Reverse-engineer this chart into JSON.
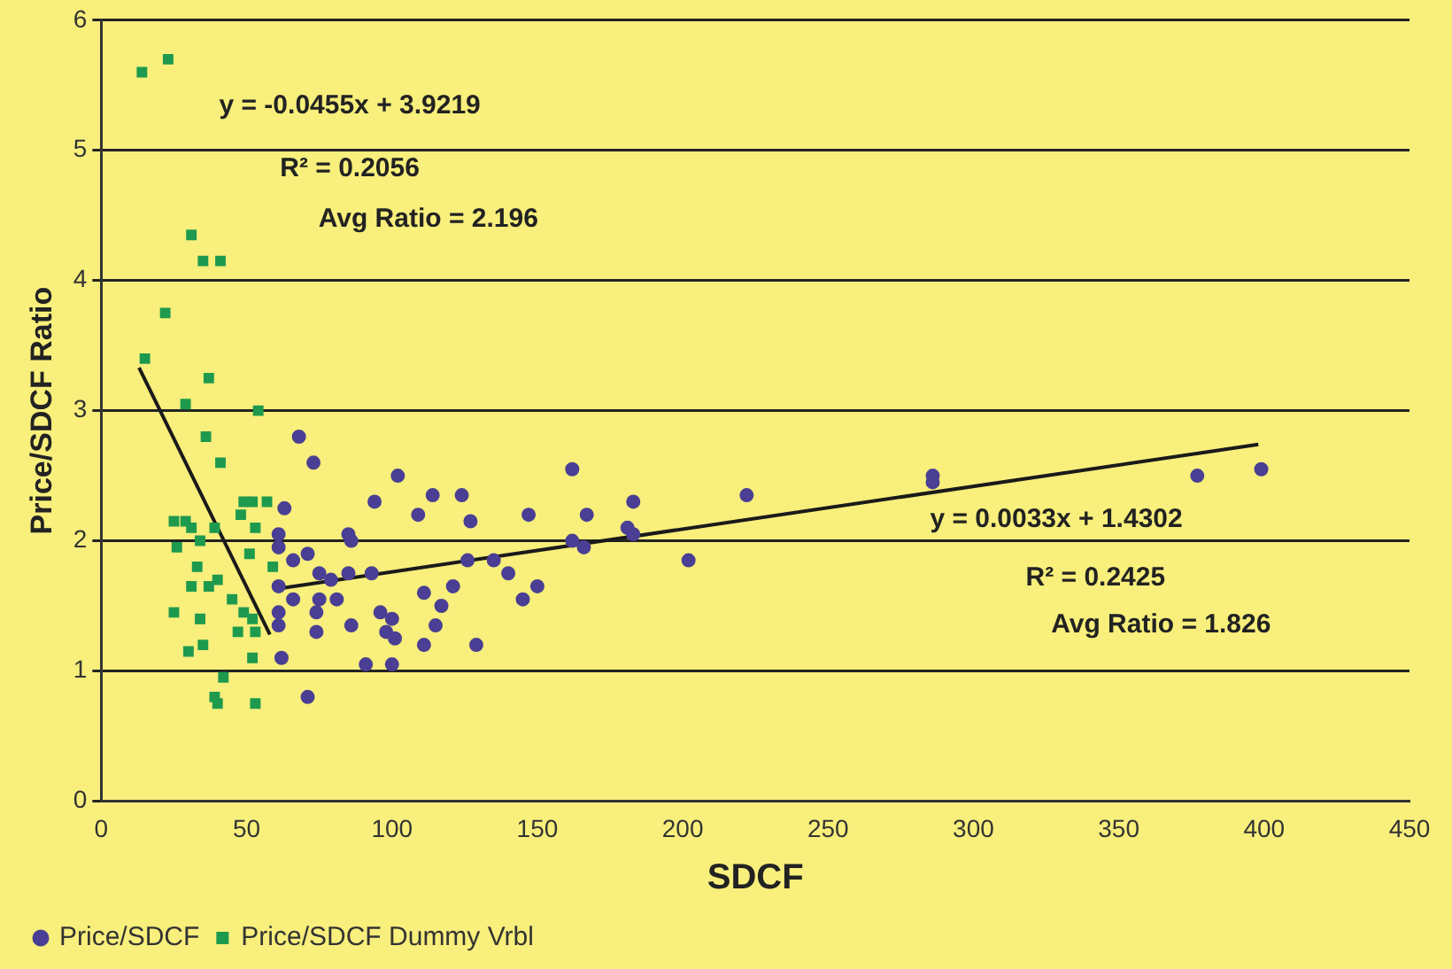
{
  "chart_data": {
    "type": "scatter",
    "xlabel": "SDCF",
    "ylabel": "Price/SDCF Ratio",
    "xlim": [
      0,
      450
    ],
    "xticks": [
      0,
      50,
      100,
      150,
      200,
      250,
      300,
      350,
      400,
      450
    ],
    "ylim": [
      0,
      6
    ],
    "yticks": [
      0,
      1,
      2,
      3,
      4,
      5,
      6
    ],
    "grid": "y",
    "legend": "bottom left",
    "series": [
      {
        "name": "Price/SDCF",
        "color": "#4a3f94",
        "marker": "circle",
        "x": [
          68,
          73,
          102,
          94,
          114,
          124,
          109,
          127,
          147,
          162,
          183,
          167,
          181,
          183,
          162,
          166,
          202,
          63,
          61,
          85,
          86,
          61,
          66,
          71,
          126,
          135,
          140,
          75,
          79,
          85,
          93,
          61,
          121,
          150,
          66,
          75,
          81,
          111,
          145,
          61,
          74,
          96,
          100,
          117,
          61,
          74,
          86,
          98,
          101,
          115,
          111,
          129,
          62,
          91,
          100,
          71,
          222,
          286,
          286,
          377,
          399
        ],
        "values": [
          2.8,
          2.6,
          2.5,
          2.3,
          2.35,
          2.35,
          2.2,
          2.15,
          2.2,
          2.55,
          2.3,
          2.2,
          2.1,
          2.05,
          2.0,
          1.95,
          1.85,
          2.25,
          2.05,
          2.05,
          2.0,
          1.95,
          1.85,
          1.9,
          1.85,
          1.85,
          1.75,
          1.75,
          1.7,
          1.75,
          1.75,
          1.65,
          1.65,
          1.65,
          1.55,
          1.55,
          1.55,
          1.6,
          1.55,
          1.45,
          1.45,
          1.45,
          1.4,
          1.5,
          1.35,
          1.3,
          1.35,
          1.3,
          1.25,
          1.35,
          1.2,
          1.2,
          1.1,
          1.05,
          1.05,
          0.8,
          2.35,
          2.5,
          2.45,
          2.5,
          2.55
        ]
      },
      {
        "name": "Price/SDCF Dummy Vrbl",
        "color": "#1e9a4e",
        "marker": "square",
        "x": [
          14,
          23,
          31,
          35,
          41,
          22,
          15,
          37,
          29,
          54,
          36,
          41,
          49,
          52,
          57,
          48,
          53,
          25,
          29,
          31,
          39,
          26,
          34,
          51,
          33,
          40,
          37,
          31,
          45,
          59,
          25,
          34,
          49,
          52,
          47,
          53,
          35,
          30,
          52,
          42,
          39,
          40,
          53
        ],
        "values": [
          5.6,
          5.7,
          4.35,
          4.15,
          4.15,
          3.75,
          3.4,
          3.25,
          3.05,
          3.0,
          2.8,
          2.6,
          2.3,
          2.3,
          2.3,
          2.2,
          2.1,
          2.15,
          2.15,
          2.1,
          2.1,
          1.95,
          2.0,
          1.9,
          1.8,
          1.7,
          1.65,
          1.65,
          1.55,
          1.8,
          1.45,
          1.4,
          1.45,
          1.4,
          1.3,
          1.3,
          1.2,
          1.15,
          1.1,
          0.95,
          0.8,
          0.75,
          0.75
        ]
      },
      {
        "type": "line",
        "color": "#1a1a1a",
        "marker": "none",
        "x": [
          13,
          58
        ],
        "values": [
          3.33,
          1.28
        ]
      },
      {
        "type": "line",
        "color": "#1a1a1a",
        "marker": "none",
        "x": [
          60,
          398
        ],
        "values": [
          1.63,
          2.74
        ]
      }
    ],
    "annotations": [
      "y = -0.0455x + 3.9219",
      "R² = 0.2056",
      "Avg Ratio = 2.196",
      "y = 0.0033x + 1.4302",
      "R² = 0.2425",
      "Avg Ratio = 1.826"
    ]
  }
}
